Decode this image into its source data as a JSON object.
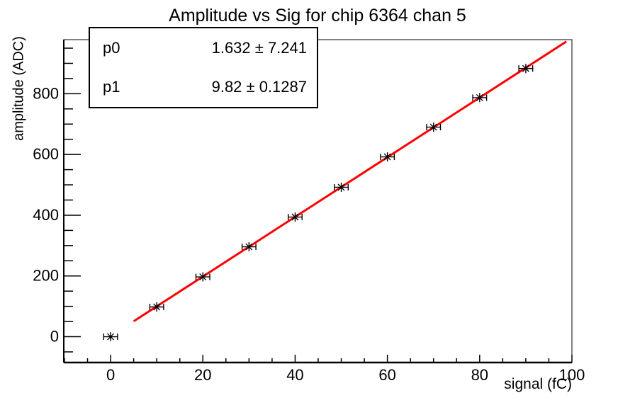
{
  "title": "Amplitude vs Sig for chip 6364 chan 5",
  "axes": {
    "x_label": "signal (fC)",
    "y_label": "amplitude (ADC)"
  },
  "stat_box": {
    "rows": [
      {
        "name": "p0",
        "value": "1.632 ± 7.241"
      },
      {
        "name": "p1",
        "value": "9.82 ± 0.1287"
      }
    ]
  },
  "colors": {
    "background": "#ffffff",
    "axis": "#000000",
    "marker": "#000000",
    "fit_line": "#ff0000"
  },
  "chart_data": {
    "type": "scatter",
    "title": "Amplitude vs Sig for chip 6364 chan 5",
    "xlabel": "signal (fC)",
    "ylabel": "amplitude (ADC)",
    "x": [
      0,
      10,
      20,
      30,
      40,
      50,
      60,
      70,
      80,
      90
    ],
    "y": [
      0,
      98,
      197,
      296,
      394,
      492,
      592,
      690,
      787,
      883
    ],
    "xerr": 1.5,
    "xlim": [
      -10.15,
      100
    ],
    "ylim": [
      -85,
      978
    ],
    "x_major_ticks": [
      0,
      20,
      40,
      60,
      80,
      100
    ],
    "x_minor_step": 5,
    "y_major_ticks": [
      0,
      200,
      400,
      600,
      800
    ],
    "y_minor_step": 50,
    "grid": false,
    "legend": "none",
    "marker_style": "asterisk-with-x-error-bars",
    "fit": {
      "type": "linear",
      "p0": 1.632,
      "p1": 9.82,
      "x_min": 5.0,
      "x_max": 98.8,
      "color": "#ff0000"
    }
  }
}
